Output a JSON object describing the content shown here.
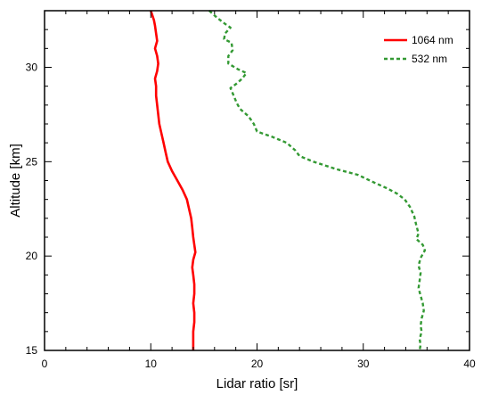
{
  "chart_data": {
    "type": "line",
    "xlabel": "Lidar ratio [sr]",
    "ylabel": "Altitude [km]",
    "xlim": [
      0,
      40
    ],
    "ylim": [
      15,
      33
    ],
    "xticks": [
      0,
      10,
      20,
      30,
      40
    ],
    "yticks": [
      15,
      20,
      25,
      30
    ],
    "grid": false,
    "legend_position": "top-right",
    "series": [
      {
        "name": "1064 nm",
        "color": "#ff0000",
        "style": "solid",
        "points": [
          [
            10.0,
            33.0
          ],
          [
            10.3,
            32.5
          ],
          [
            10.4,
            32.2
          ],
          [
            10.5,
            31.8
          ],
          [
            10.6,
            31.4
          ],
          [
            10.4,
            31.0
          ],
          [
            10.6,
            30.6
          ],
          [
            10.7,
            30.2
          ],
          [
            10.6,
            29.8
          ],
          [
            10.4,
            29.4
          ],
          [
            10.5,
            29.0
          ],
          [
            10.5,
            28.5
          ],
          [
            10.6,
            28.0
          ],
          [
            10.7,
            27.5
          ],
          [
            10.8,
            27.0
          ],
          [
            11.0,
            26.5
          ],
          [
            11.2,
            26.0
          ],
          [
            11.4,
            25.5
          ],
          [
            11.6,
            25.0
          ],
          [
            12.0,
            24.5
          ],
          [
            12.5,
            24.0
          ],
          [
            13.0,
            23.5
          ],
          [
            13.4,
            23.0
          ],
          [
            13.6,
            22.5
          ],
          [
            13.8,
            22.0
          ],
          [
            13.9,
            21.5
          ],
          [
            14.0,
            21.0
          ],
          [
            14.1,
            20.6
          ],
          [
            14.2,
            20.2
          ],
          [
            14.0,
            19.8
          ],
          [
            13.9,
            19.4
          ],
          [
            14.0,
            19.0
          ],
          [
            14.1,
            18.5
          ],
          [
            14.1,
            18.0
          ],
          [
            14.0,
            17.5
          ],
          [
            14.1,
            17.0
          ],
          [
            14.1,
            16.5
          ],
          [
            14.0,
            16.0
          ],
          [
            14.0,
            15.5
          ],
          [
            14.0,
            15.0
          ]
        ]
      },
      {
        "name": "532 nm",
        "color": "#339933",
        "style": "dashed",
        "points": [
          [
            15.5,
            33.0
          ],
          [
            16.3,
            32.6
          ],
          [
            17.0,
            32.3
          ],
          [
            17.5,
            32.1
          ],
          [
            17.0,
            31.8
          ],
          [
            16.9,
            31.5
          ],
          [
            17.6,
            31.3
          ],
          [
            17.7,
            30.9
          ],
          [
            17.3,
            30.6
          ],
          [
            17.3,
            30.2
          ],
          [
            18.2,
            29.9
          ],
          [
            19.0,
            29.7
          ],
          [
            18.6,
            29.4
          ],
          [
            18.0,
            29.1
          ],
          [
            17.5,
            28.9
          ],
          [
            17.8,
            28.5
          ],
          [
            18.1,
            28.1
          ],
          [
            18.4,
            27.8
          ],
          [
            19.2,
            27.4
          ],
          [
            19.7,
            27.0
          ],
          [
            20.0,
            26.6
          ],
          [
            21.5,
            26.3
          ],
          [
            22.8,
            26.0
          ],
          [
            23.6,
            25.6
          ],
          [
            24.0,
            25.3
          ],
          [
            25.3,
            25.0
          ],
          [
            27.5,
            24.6
          ],
          [
            29.5,
            24.3
          ],
          [
            31.0,
            23.9
          ],
          [
            32.2,
            23.6
          ],
          [
            33.2,
            23.3
          ],
          [
            33.9,
            23.0
          ],
          [
            34.4,
            22.6
          ],
          [
            34.8,
            22.1
          ],
          [
            35.0,
            21.6
          ],
          [
            35.2,
            21.2
          ],
          [
            35.0,
            20.9
          ],
          [
            35.6,
            20.6
          ],
          [
            35.8,
            20.3
          ],
          [
            35.4,
            19.9
          ],
          [
            35.2,
            19.5
          ],
          [
            35.4,
            19.1
          ],
          [
            35.3,
            18.7
          ],
          [
            35.2,
            18.3
          ],
          [
            35.4,
            17.9
          ],
          [
            35.6,
            17.5
          ],
          [
            35.7,
            17.1
          ],
          [
            35.5,
            16.7
          ],
          [
            35.4,
            16.3
          ],
          [
            35.5,
            16.0
          ],
          [
            35.3,
            15.6
          ],
          [
            35.4,
            15.3
          ],
          [
            35.3,
            15.0
          ]
        ]
      }
    ]
  }
}
